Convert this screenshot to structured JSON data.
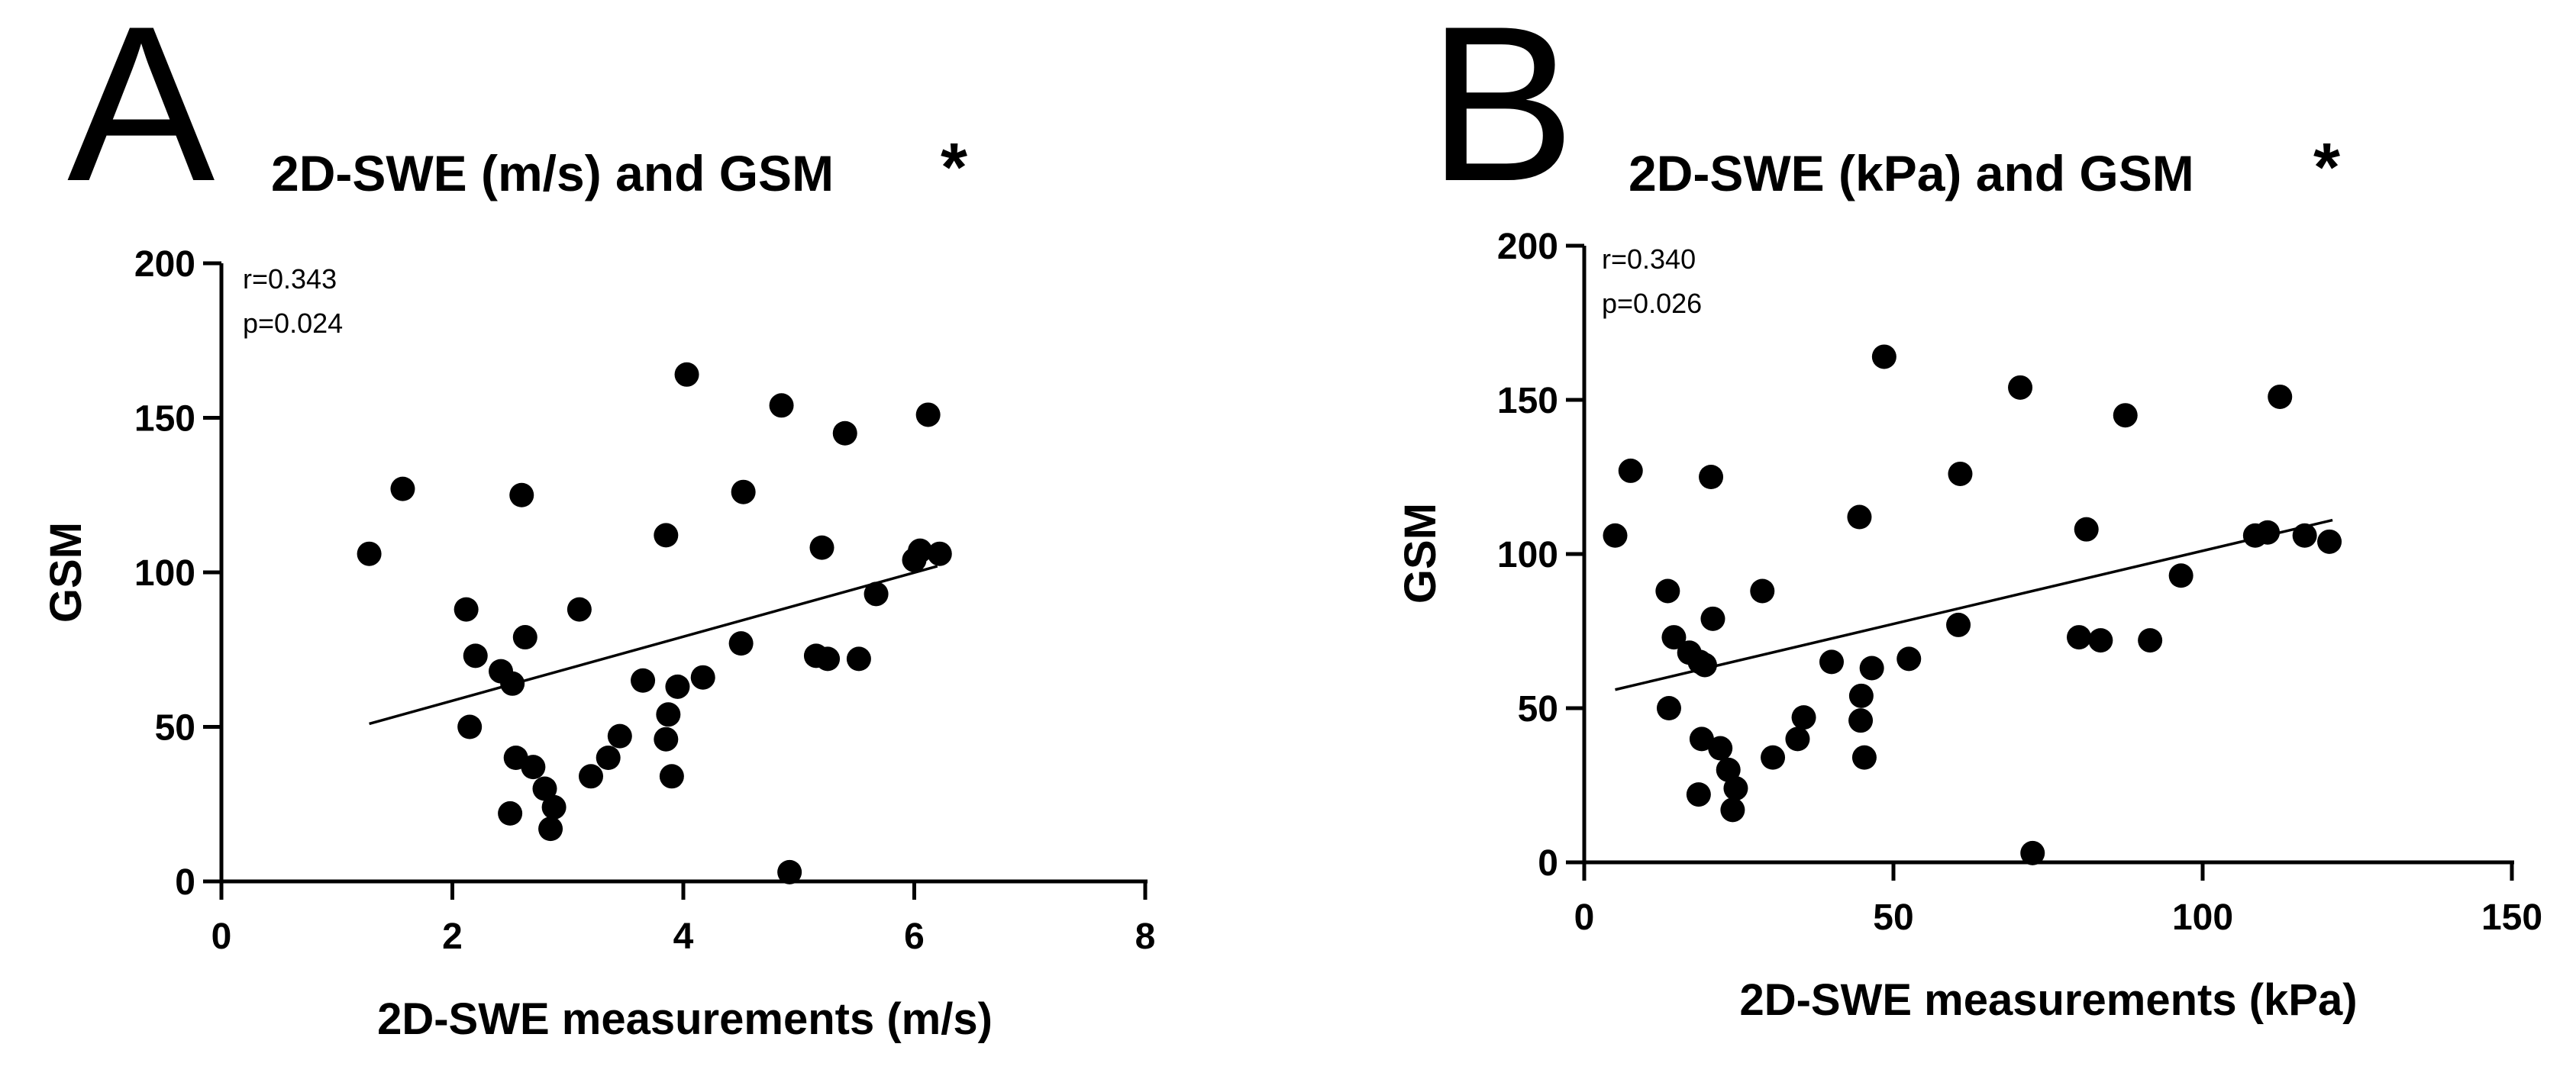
{
  "chart_data": [
    {
      "panel": "A",
      "type": "scatter",
      "title": "2D-SWE (m/s) and GSM",
      "significance": "*",
      "xlabel": "2D-SWE measurements (m/s)",
      "ylabel": "GSM",
      "xlim": [
        0,
        8
      ],
      "ylim": [
        0,
        200
      ],
      "xticks": [
        0,
        2,
        4,
        6,
        8
      ],
      "yticks": [
        0,
        50,
        100,
        150,
        200
      ],
      "stats": {
        "r": "r=0.343",
        "p": "p=0.024"
      },
      "fit_line": {
        "x": [
          1.28,
          6.2
        ],
        "y": [
          51,
          102
        ]
      },
      "points": [
        {
          "x": 1.28,
          "y": 106
        },
        {
          "x": 1.57,
          "y": 127
        },
        {
          "x": 2.12,
          "y": 88
        },
        {
          "x": 2.15,
          "y": 50
        },
        {
          "x": 2.2,
          "y": 73
        },
        {
          "x": 2.42,
          "y": 68
        },
        {
          "x": 2.5,
          "y": 22
        },
        {
          "x": 2.52,
          "y": 64
        },
        {
          "x": 2.55,
          "y": 40
        },
        {
          "x": 2.6,
          "y": 125
        },
        {
          "x": 2.63,
          "y": 79
        },
        {
          "x": 2.7,
          "y": 37
        },
        {
          "x": 2.8,
          "y": 30
        },
        {
          "x": 2.85,
          "y": 17
        },
        {
          "x": 2.88,
          "y": 24
        },
        {
          "x": 3.1,
          "y": 88
        },
        {
          "x": 3.2,
          "y": 34
        },
        {
          "x": 3.35,
          "y": 40
        },
        {
          "x": 3.45,
          "y": 47
        },
        {
          "x": 3.65,
          "y": 65
        },
        {
          "x": 3.85,
          "y": 112
        },
        {
          "x": 3.85,
          "y": 46
        },
        {
          "x": 3.87,
          "y": 54
        },
        {
          "x": 3.9,
          "y": 34
        },
        {
          "x": 3.95,
          "y": 63
        },
        {
          "x": 4.03,
          "y": 164
        },
        {
          "x": 4.17,
          "y": 66
        },
        {
          "x": 4.5,
          "y": 77
        },
        {
          "x": 4.52,
          "y": 126
        },
        {
          "x": 4.85,
          "y": 154
        },
        {
          "x": 4.92,
          "y": 3
        },
        {
          "x": 5.15,
          "y": 73
        },
        {
          "x": 5.2,
          "y": 108
        },
        {
          "x": 5.25,
          "y": 72
        },
        {
          "x": 5.4,
          "y": 145
        },
        {
          "x": 5.52,
          "y": 72
        },
        {
          "x": 5.67,
          "y": 93
        },
        {
          "x": 6.0,
          "y": 104
        },
        {
          "x": 6.05,
          "y": 107
        },
        {
          "x": 6.12,
          "y": 151
        },
        {
          "x": 6.22,
          "y": 106
        }
      ]
    },
    {
      "panel": "B",
      "type": "scatter",
      "title": "2D-SWE (kPa) and GSM",
      "significance": "*",
      "xlabel": "2D-SWE measurements (kPa)",
      "ylabel": "GSM",
      "xlim": [
        0,
        150
      ],
      "ylim": [
        0,
        200
      ],
      "xticks": [
        0,
        50,
        100,
        150
      ],
      "yticks": [
        0,
        50,
        100,
        150,
        200
      ],
      "stats": {
        "r": "r=0.340",
        "p": "p=0.026"
      },
      "fit_line": {
        "x": [
          5,
          121
        ],
        "y": [
          56,
          111
        ]
      },
      "points": [
        {
          "x": 5,
          "y": 106
        },
        {
          "x": 7.5,
          "y": 127
        },
        {
          "x": 13.5,
          "y": 88
        },
        {
          "x": 13.7,
          "y": 50
        },
        {
          "x": 14.5,
          "y": 73
        },
        {
          "x": 17,
          "y": 68
        },
        {
          "x": 18.5,
          "y": 22
        },
        {
          "x": 18.7,
          "y": 65
        },
        {
          "x": 19,
          "y": 40
        },
        {
          "x": 19.5,
          "y": 64
        },
        {
          "x": 20.5,
          "y": 125
        },
        {
          "x": 20.8,
          "y": 79
        },
        {
          "x": 22,
          "y": 37
        },
        {
          "x": 23.3,
          "y": 30
        },
        {
          "x": 24,
          "y": 17
        },
        {
          "x": 24.5,
          "y": 24
        },
        {
          "x": 28.8,
          "y": 88
        },
        {
          "x": 30.5,
          "y": 34
        },
        {
          "x": 34.5,
          "y": 40
        },
        {
          "x": 35.5,
          "y": 47
        },
        {
          "x": 40,
          "y": 65
        },
        {
          "x": 44.5,
          "y": 112
        },
        {
          "x": 44.7,
          "y": 46
        },
        {
          "x": 44.8,
          "y": 54
        },
        {
          "x": 45.3,
          "y": 34
        },
        {
          "x": 46.5,
          "y": 63
        },
        {
          "x": 48.5,
          "y": 164
        },
        {
          "x": 52.5,
          "y": 66
        },
        {
          "x": 60.5,
          "y": 77
        },
        {
          "x": 60.8,
          "y": 126
        },
        {
          "x": 70.5,
          "y": 154
        },
        {
          "x": 72.5,
          "y": 3
        },
        {
          "x": 80,
          "y": 73
        },
        {
          "x": 81.2,
          "y": 108
        },
        {
          "x": 83.5,
          "y": 72
        },
        {
          "x": 87.5,
          "y": 145
        },
        {
          "x": 91.5,
          "y": 72
        },
        {
          "x": 96.5,
          "y": 93
        },
        {
          "x": 108.5,
          "y": 106
        },
        {
          "x": 110.5,
          "y": 107
        },
        {
          "x": 112.5,
          "y": 151
        },
        {
          "x": 116.5,
          "y": 106
        },
        {
          "x": 120.5,
          "y": 104
        }
      ]
    }
  ]
}
